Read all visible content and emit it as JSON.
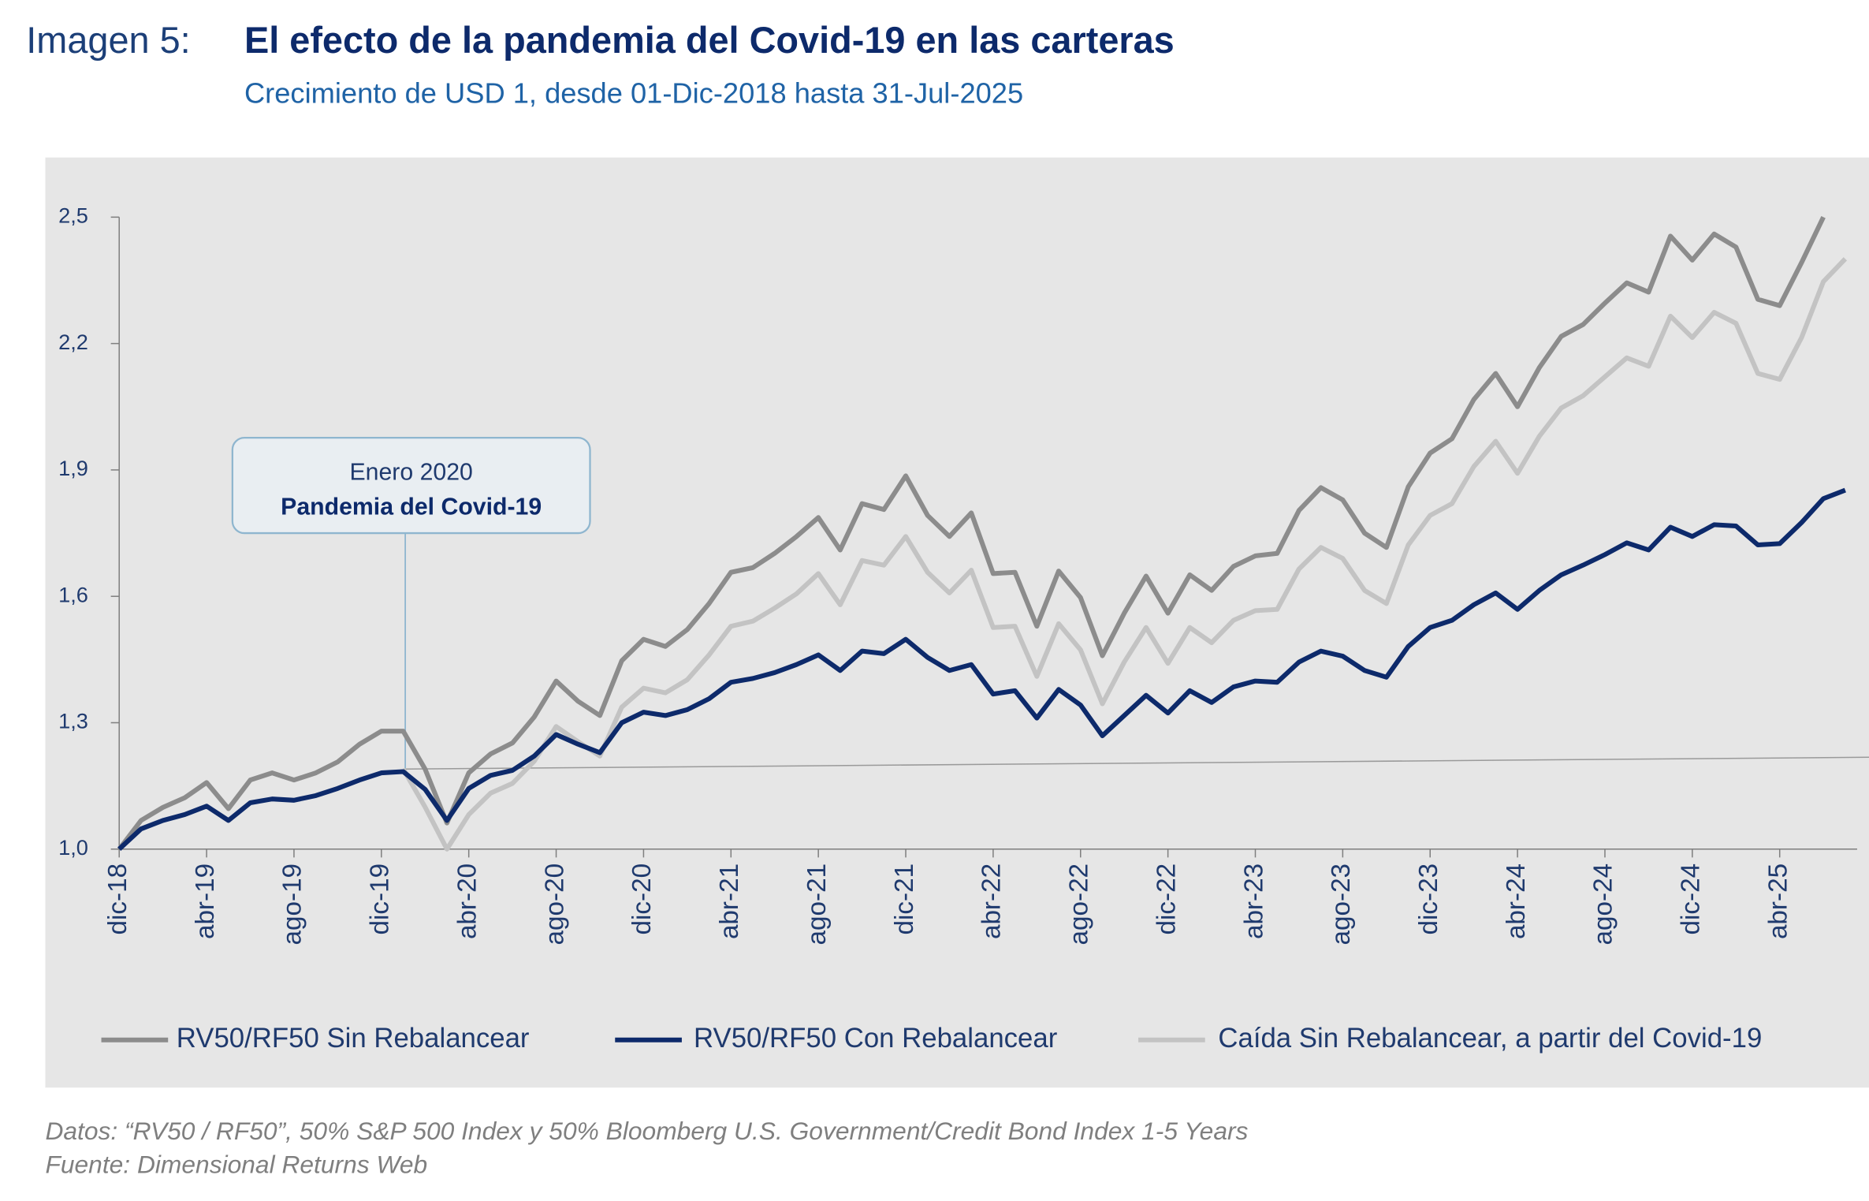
{
  "chart_data": {
    "type": "line",
    "figure_label": "Imagen 5:",
    "title": "El efecto de la pandemia del Covid-19 en las carteras",
    "subtitle": "Crecimiento de USD 1, desde 01-Dic-2018 hasta 31-Jul-2025",
    "annotation": {
      "line1": "Enero 2020",
      "line2": "Pandemia del Covid-19"
    },
    "notes": [
      "Datos: “RV50 / RF50”, 50% S&P 500 Index y 50% Bloomberg U.S. Government/Credit Bond Index 1-5 Years",
      "Fuente: Dimensional Returns Web"
    ],
    "categories": [
      "dic-18",
      null,
      null,
      null,
      "abr-19",
      null,
      null,
      null,
      "ago-19",
      null,
      null,
      null,
      "dic-19",
      null,
      null,
      null,
      "abr-20",
      null,
      null,
      null,
      "ago-20",
      null,
      null,
      null,
      "dic-20",
      null,
      null,
      null,
      "abr-21",
      null,
      null,
      null,
      "ago-21",
      null,
      null,
      null,
      "dic-21",
      null,
      null,
      null,
      "abr-22",
      null,
      null,
      null,
      "ago-22",
      null,
      null,
      null,
      "dic-22",
      null,
      null,
      null,
      "abr-23",
      null,
      null,
      null,
      "ago-23",
      null,
      null,
      null,
      "dic-23",
      null,
      null,
      null,
      "abr-24",
      null,
      null,
      null,
      "ago-24",
      null,
      null,
      null,
      "dic-24",
      null,
      null,
      null,
      "abr-25",
      null,
      null,
      null
    ],
    "ylim": [
      1.0,
      2.5
    ],
    "yticks": [
      {
        "value": 1.0,
        "label": "1,0"
      },
      {
        "value": 1.3,
        "label": "1,3"
      },
      {
        "value": 1.6,
        "label": "1,6"
      },
      {
        "value": 1.9,
        "label": "1,9"
      },
      {
        "value": 2.2,
        "label": "2,2"
      },
      {
        "value": 2.5,
        "label": "2,5"
      }
    ],
    "grid": false,
    "legend": "bottom",
    "reference_line": [
      1.19,
      1.218
    ],
    "series": [
      {
        "name": "RV50/RF50 Sin Rebalancear",
        "color": "#8c8c8c",
        "values": [
          1.0,
          1.068,
          1.099,
          1.122,
          1.158,
          1.096,
          1.164,
          1.181,
          1.164,
          1.181,
          1.207,
          1.249,
          1.28,
          1.28,
          1.19,
          1.062,
          1.181,
          1.226,
          1.252,
          1.314,
          1.399,
          1.351,
          1.317,
          1.447,
          1.498,
          1.481,
          1.521,
          1.583,
          1.657,
          1.668,
          1.702,
          1.742,
          1.787,
          1.71,
          1.82,
          1.806,
          1.886,
          1.792,
          1.742,
          1.798,
          1.654,
          1.657,
          1.529,
          1.66,
          1.597,
          1.459,
          1.56,
          1.648,
          1.56,
          1.651,
          1.614,
          1.671,
          1.696,
          1.702,
          1.804,
          1.858,
          1.829,
          1.75,
          1.716,
          1.86,
          1.94,
          1.974,
          2.067,
          2.129,
          2.05,
          2.143,
          2.217,
          2.245,
          2.296,
          2.344,
          2.322,
          2.455,
          2.398,
          2.46,
          2.429,
          2.305,
          2.29,
          2.392,
          2.5,
          null
        ]
      },
      {
        "name": "RV50/RF50 Con Rebalancear",
        "color": "#0d2a6b",
        "values": [
          1.0,
          1.048,
          1.068,
          1.082,
          1.102,
          1.068,
          1.11,
          1.119,
          1.116,
          1.127,
          1.144,
          1.164,
          1.181,
          1.184,
          1.142,
          1.068,
          1.144,
          1.175,
          1.187,
          1.221,
          1.272,
          1.249,
          1.229,
          1.3,
          1.325,
          1.317,
          1.331,
          1.357,
          1.396,
          1.405,
          1.419,
          1.438,
          1.461,
          1.424,
          1.47,
          1.464,
          1.498,
          1.455,
          1.424,
          1.438,
          1.368,
          1.376,
          1.311,
          1.379,
          1.342,
          1.269,
          1.317,
          1.365,
          1.323,
          1.376,
          1.348,
          1.385,
          1.399,
          1.396,
          1.444,
          1.47,
          1.458,
          1.424,
          1.408,
          1.481,
          1.526,
          1.543,
          1.58,
          1.608,
          1.569,
          1.614,
          1.651,
          1.674,
          1.699,
          1.727,
          1.71,
          1.764,
          1.742,
          1.77,
          1.767,
          1.722,
          1.725,
          1.775,
          1.832,
          1.852
        ]
      },
      {
        "name": "Caída Sin Rebalancear, a partir del Covid-19",
        "color": "#c3c3c3",
        "values": [
          null,
          null,
          null,
          null,
          null,
          null,
          null,
          null,
          null,
          null,
          null,
          null,
          null,
          1.19,
          1.1,
          1.0,
          1.082,
          1.133,
          1.156,
          1.209,
          1.291,
          1.255,
          1.221,
          1.337,
          1.382,
          1.371,
          1.402,
          1.461,
          1.529,
          1.541,
          1.572,
          1.606,
          1.654,
          1.58,
          1.685,
          1.674,
          1.742,
          1.657,
          1.608,
          1.662,
          1.526,
          1.529,
          1.41,
          1.535,
          1.473,
          1.345,
          1.444,
          1.526,
          1.441,
          1.526,
          1.49,
          1.543,
          1.566,
          1.569,
          1.665,
          1.716,
          1.69,
          1.614,
          1.583,
          1.722,
          1.792,
          1.82,
          1.908,
          1.968,
          1.892,
          1.98,
          2.047,
          2.076,
          2.121,
          2.166,
          2.146,
          2.265,
          2.214,
          2.274,
          2.248,
          2.129,
          2.115,
          2.214,
          2.347,
          2.401
        ]
      }
    ]
  }
}
